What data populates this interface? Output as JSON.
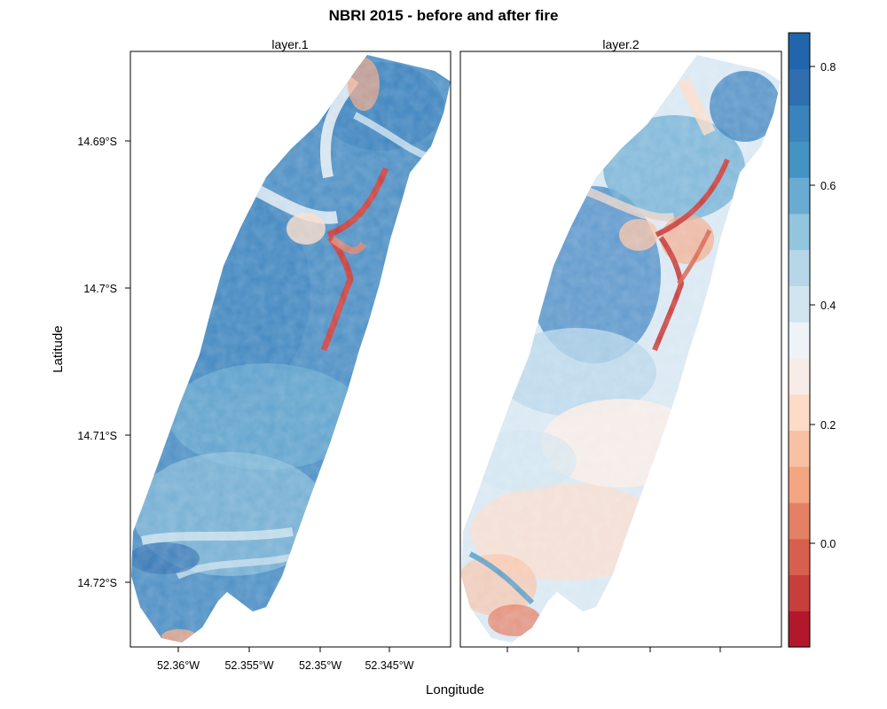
{
  "title": "NBRI 2015 - before and after fire",
  "xlabel": "Longitude",
  "ylabel": "Latitude",
  "panels": [
    {
      "strip": "layer.1",
      "state": "before"
    },
    {
      "strip": "layer.2",
      "state": "after"
    }
  ],
  "x_ticks": [
    "52.36°W",
    "52.355°W",
    "52.35°W",
    "52.345°W"
  ],
  "y_ticks": [
    "14.69°S",
    "14.7°S",
    "14.71°S",
    "14.72°S"
  ],
  "colorbar": {
    "ticks": [
      "0.8",
      "0.6",
      "0.4",
      "0.2",
      "0.0"
    ],
    "colors": [
      "#b2182b",
      "#c83e3d",
      "#d6604d",
      "#e48066",
      "#f4a582",
      "#f8c1a4",
      "#fddbc7",
      "#f7ece7",
      "#eef3f7",
      "#d1e5f0",
      "#b7d6ea",
      "#92c5de",
      "#6aabd2",
      "#4393c3",
      "#3a83bd",
      "#2f6fb0",
      "#2166ac"
    ]
  },
  "chart_data": {
    "type": "heatmap",
    "title": "NBRI 2015 - before and after fire",
    "xlabel": "Longitude",
    "ylabel": "Latitude",
    "panels": [
      "layer.1",
      "layer.2"
    ],
    "x_ticks": [
      -52.36,
      -52.355,
      -52.35,
      -52.345
    ],
    "y_ticks": [
      -14.69,
      -14.7,
      -14.71,
      -14.72
    ],
    "xlim": [
      -52.3635,
      -52.3405
    ],
    "ylim": [
      -14.7235,
      -14.6815
    ],
    "zlim": [
      -0.2,
      0.85
    ],
    "colorbar_ticks": [
      0.0,
      0.2,
      0.4,
      0.6,
      0.8
    ],
    "colorbar_breaks": [
      -0.2,
      -0.15,
      -0.1,
      -0.05,
      0.0,
      0.05,
      0.1,
      0.15,
      0.2,
      0.25,
      0.3,
      0.35,
      0.4,
      0.45,
      0.5,
      0.55,
      0.6,
      0.65,
      0.7,
      0.75,
      0.8,
      0.85
    ],
    "summary": {
      "layer.1": {
        "typical_nbri": 0.65,
        "min_nbri": -0.1,
        "max_nbri": 0.8
      },
      "layer.2": {
        "typical_nbri": 0.35,
        "min_nbri": -0.1,
        "max_nbri": 0.8
      }
    }
  }
}
